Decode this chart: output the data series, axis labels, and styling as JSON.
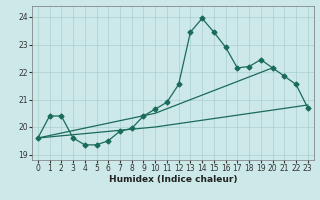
{
  "xlabel": "Humidex (Indice chaleur)",
  "bg_color": "#cce8e8",
  "line_color": "#1a6b5a",
  "grid_color": "#aacfcf",
  "xlim": [
    -0.5,
    23.5
  ],
  "ylim": [
    18.8,
    24.4
  ],
  "yticks": [
    19,
    20,
    21,
    22,
    23,
    24
  ],
  "xticks": [
    0,
    1,
    2,
    3,
    4,
    5,
    6,
    7,
    8,
    9,
    10,
    11,
    12,
    13,
    14,
    15,
    16,
    17,
    18,
    19,
    20,
    21,
    22,
    23
  ],
  "curve_x": [
    0,
    1,
    2,
    3,
    4,
    5,
    6,
    7,
    8,
    9,
    10,
    11,
    12,
    13,
    14,
    15,
    16,
    17,
    18,
    19,
    20,
    21,
    22,
    23
  ],
  "curve_y": [
    19.6,
    20.4,
    20.4,
    19.6,
    19.35,
    19.35,
    19.5,
    19.85,
    19.95,
    20.4,
    20.65,
    20.9,
    21.55,
    23.45,
    23.95,
    23.45,
    22.9,
    22.15,
    22.2,
    22.45,
    22.15,
    21.85,
    21.55,
    20.7
  ],
  "trend1_x": [
    0,
    10,
    23
  ],
  "trend1_y": [
    19.6,
    20.0,
    20.8
  ],
  "trend2_x": [
    0,
    10,
    20
  ],
  "trend2_y": [
    19.6,
    20.5,
    22.15
  ],
  "marker_size": 2.5,
  "linewidth": 0.9,
  "axis_fontsize": 6.5,
  "tick_fontsize": 5.5
}
